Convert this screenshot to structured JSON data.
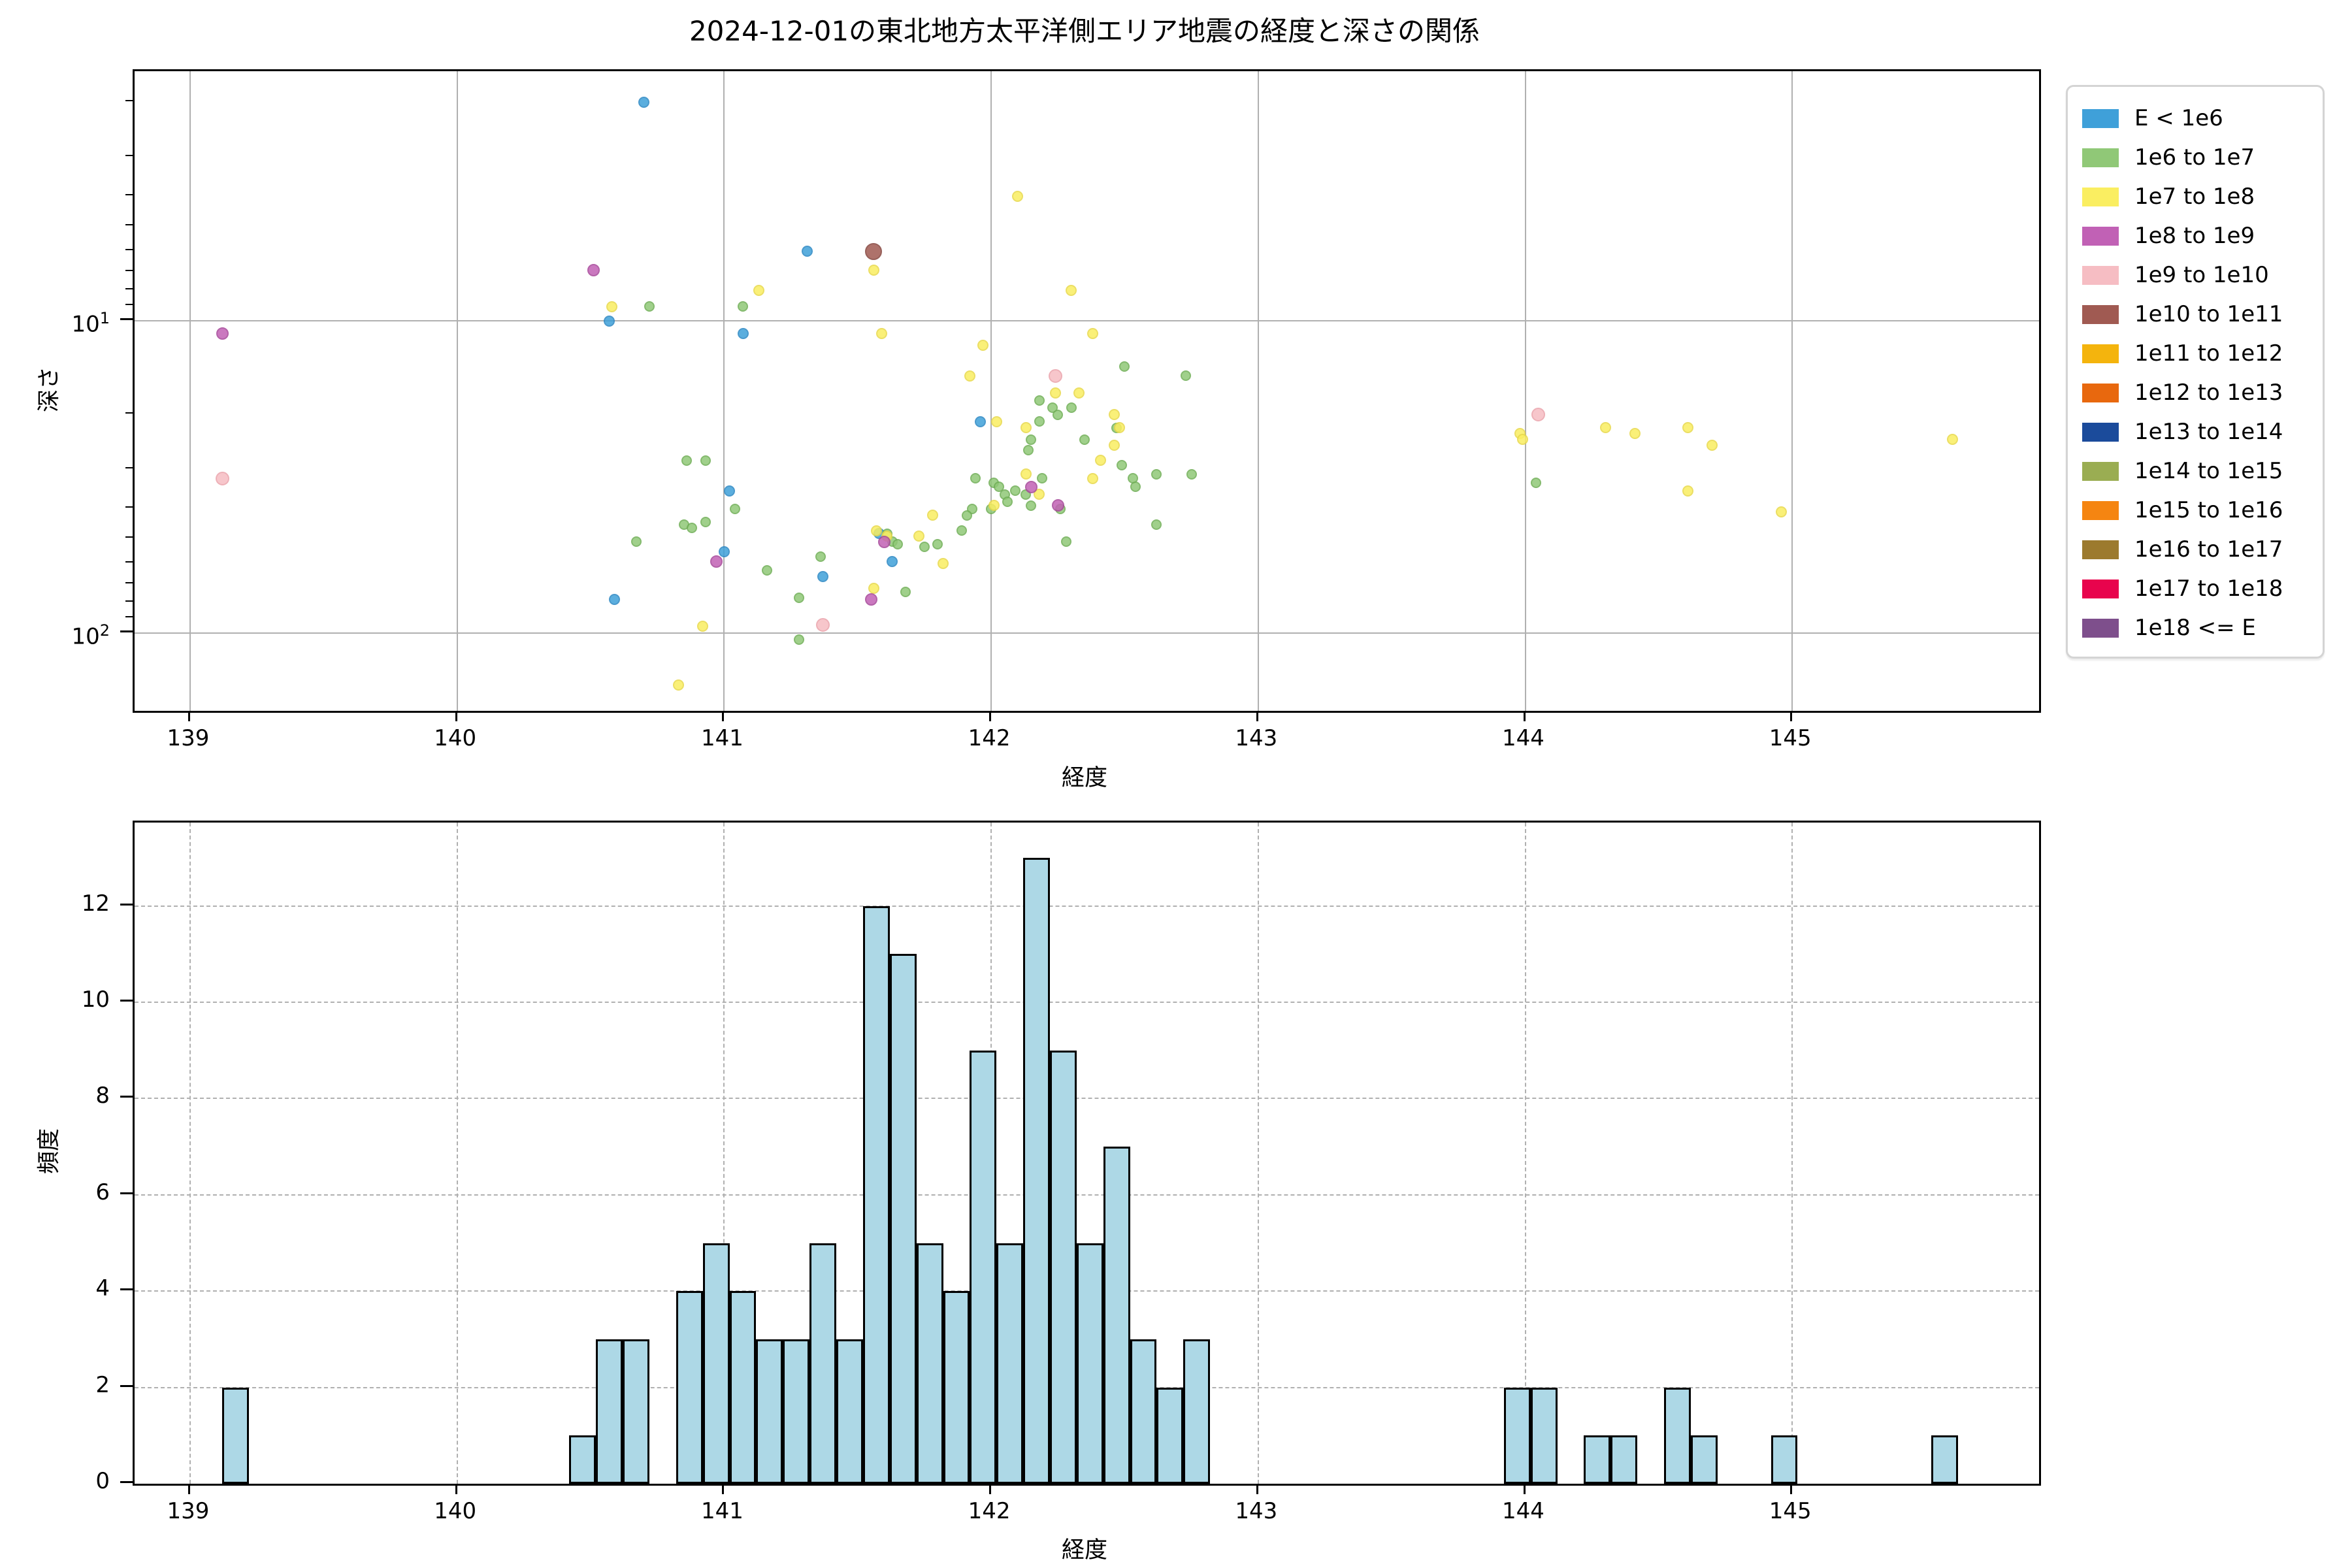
{
  "chart_data": [
    {
      "type": "scatter",
      "title": "2024-12-01の東北地方太平洋側エリア地震の経度と深さの関係",
      "xlabel": "経度",
      "ylabel": "深さ",
      "xlim": [
        138.79,
        145.93
      ],
      "ylim": [
        1.59,
        177.4
      ],
      "y_axis": "log, inverted (depth increases downward)",
      "x_ticks": [
        139,
        140,
        141,
        142,
        143,
        144,
        145
      ],
      "y_tick_exponents": [
        1,
        2
      ],
      "y_tick_base": "10",
      "y_minor_ticks": [
        2,
        3,
        4,
        5,
        6,
        7,
        8,
        9,
        20,
        30,
        40,
        50,
        60,
        70,
        80,
        90
      ],
      "grid": "solid",
      "legend_position": "outside upper right",
      "series": [
        {
          "name": "E < 1e6",
          "color": "#3fa0d9",
          "edge": "#2b88c4",
          "size": 17,
          "points": [
            [
              140.7,
              2.0
            ],
            [
              141.31,
              6.0
            ],
            [
              140.57,
              10.0
            ],
            [
              141.07,
              11.0
            ],
            [
              141.96,
              21
            ],
            [
              141.02,
              35
            ],
            [
              141.58,
              48
            ],
            [
              141.0,
              55
            ],
            [
              141.63,
              59
            ],
            [
              141.37,
              66
            ],
            [
              140.59,
              78
            ]
          ]
        },
        {
          "name": "1e6 to 1e7",
          "color": "#90c877",
          "edge": "#6fae55",
          "size": 16,
          "points": [
            [
              140.72,
              9.0
            ],
            [
              141.07,
              9.0
            ],
            [
              142.5,
              14
            ],
            [
              142.73,
              15
            ],
            [
              142.18,
              18
            ],
            [
              142.23,
              19
            ],
            [
              142.3,
              19
            ],
            [
              142.25,
              20
            ],
            [
              142.18,
              21
            ],
            [
              142.47,
              22
            ],
            [
              142.15,
              24
            ],
            [
              142.35,
              24
            ],
            [
              142.14,
              26
            ],
            [
              140.86,
              28
            ],
            [
              140.93,
              28
            ],
            [
              142.49,
              29
            ],
            [
              142.62,
              31
            ],
            [
              142.75,
              31
            ],
            [
              141.94,
              32
            ],
            [
              142.19,
              32
            ],
            [
              142.53,
              32
            ],
            [
              142.01,
              33
            ],
            [
              144.04,
              33
            ],
            [
              142.03,
              34
            ],
            [
              142.54,
              34
            ],
            [
              142.09,
              35
            ],
            [
              142.05,
              36
            ],
            [
              142.13,
              36
            ],
            [
              142.06,
              38
            ],
            [
              142.15,
              39
            ],
            [
              141.93,
              40
            ],
            [
              142.0,
              40
            ],
            [
              141.04,
              40
            ],
            [
              142.26,
              40
            ],
            [
              141.91,
              42
            ],
            [
              140.93,
              44
            ],
            [
              140.85,
              45
            ],
            [
              142.62,
              45
            ],
            [
              140.88,
              46
            ],
            [
              141.89,
              47
            ],
            [
              141.61,
              48
            ],
            [
              140.67,
              51
            ],
            [
              141.63,
              51
            ],
            [
              142.28,
              51
            ],
            [
              141.65,
              52
            ],
            [
              141.8,
              52
            ],
            [
              141.75,
              53
            ],
            [
              141.36,
              57
            ],
            [
              141.16,
              63
            ],
            [
              141.68,
              74
            ],
            [
              141.28,
              77
            ],
            [
              141.28,
              105
            ]
          ]
        },
        {
          "name": "1e7 to 1e8",
          "color": "#faee61",
          "edge": "#e8d94a",
          "size": 17,
          "points": [
            [
              142.1,
              4.0
            ],
            [
              141.56,
              6.9
            ],
            [
              142.3,
              8.0
            ],
            [
              141.13,
              8.0
            ],
            [
              140.58,
              9.0
            ],
            [
              141.59,
              11.0
            ],
            [
              142.38,
              11
            ],
            [
              141.97,
              12
            ],
            [
              141.92,
              15
            ],
            [
              142.24,
              17
            ],
            [
              142.33,
              17
            ],
            [
              142.46,
              20
            ],
            [
              142.02,
              21
            ],
            [
              144.61,
              22
            ],
            [
              142.13,
              22
            ],
            [
              142.48,
              22
            ],
            [
              144.3,
              22
            ],
            [
              143.98,
              23
            ],
            [
              144.41,
              23
            ],
            [
              143.99,
              24
            ],
            [
              145.6,
              24
            ],
            [
              142.46,
              25
            ],
            [
              144.7,
              25
            ],
            [
              142.41,
              28
            ],
            [
              142.13,
              31
            ],
            [
              142.38,
              32
            ],
            [
              144.61,
              35
            ],
            [
              142.18,
              36
            ],
            [
              142.01,
              39
            ],
            [
              144.96,
              41
            ],
            [
              141.78,
              42
            ],
            [
              141.57,
              47
            ],
            [
              141.73,
              49
            ],
            [
              141.61,
              49
            ],
            [
              141.82,
              60
            ],
            [
              141.56,
              72
            ],
            [
              140.92,
              95
            ],
            [
              140.83,
              147
            ]
          ]
        },
        {
          "name": "1e8 to 1e9",
          "color": "#c161b5",
          "edge": "#a6479a",
          "size": 19,
          "points": [
            [
              139.12,
              11.0
            ],
            [
              140.51,
              6.9
            ],
            [
              142.15,
              34
            ],
            [
              142.25,
              39
            ],
            [
              141.6,
              51
            ],
            [
              140.97,
              59
            ],
            [
              141.55,
              78
            ]
          ]
        },
        {
          "name": "1e9 to 1e10",
          "color": "#f6bdc3",
          "edge": "#eba3ab",
          "size": 21,
          "points": [
            [
              139.12,
              32
            ],
            [
              142.24,
              15
            ],
            [
              144.05,
              20
            ],
            [
              141.37,
              94
            ]
          ]
        },
        {
          "name": "1e10 to 1e11",
          "color": "#a05a52",
          "edge": "#86453e",
          "size": 26,
          "points": [
            [
              141.56,
              6.0
            ]
          ]
        },
        {
          "name": "1e11 to 1e12",
          "color": "#f4b40d",
          "edge": "#d89c05",
          "size": 17,
          "points": []
        },
        {
          "name": "1e12 to 1e13",
          "color": "#e8680e",
          "edge": "#c9560a",
          "size": 17,
          "points": []
        },
        {
          "name": "1e13 to 1e14",
          "color": "#1b4b9b",
          "edge": "#143a7d",
          "size": 17,
          "points": []
        },
        {
          "name": "1e14 to 1e15",
          "color": "#9aad52",
          "edge": "#7f913e",
          "size": 17,
          "points": []
        },
        {
          "name": "1e15 to 1e16",
          "color": "#f58511",
          "edge": "#d2700c",
          "size": 17,
          "points": []
        },
        {
          "name": "1e16 to 1e17",
          "color": "#9c7a2e",
          "edge": "#806324",
          "size": 17,
          "points": []
        },
        {
          "name": "1e17 to 1e18",
          "color": "#e8044d",
          "edge": "#c00340",
          "size": 17,
          "points": []
        },
        {
          "name": "1e18 <= E",
          "color": "#7e4f8c",
          "edge": "#673f73",
          "size": 17,
          "points": []
        }
      ]
    },
    {
      "type": "bar",
      "subtype": "histogram",
      "xlabel": "経度",
      "ylabel": "頻度",
      "xlim": [
        138.79,
        145.93
      ],
      "ylim": [
        0,
        13.7
      ],
      "x_ticks": [
        139,
        140,
        141,
        142,
        143,
        144,
        145
      ],
      "y_ticks": [
        0,
        2,
        4,
        6,
        8,
        10,
        12
      ],
      "grid": "dashed",
      "bar_color": "#add8e6",
      "bar_edge_color": "#000000",
      "bin_width": 0.1,
      "bins": [
        {
          "start": 139.12,
          "count": 2
        },
        {
          "start": 140.42,
          "count": 1
        },
        {
          "start": 140.52,
          "count": 3
        },
        {
          "start": 140.62,
          "count": 3
        },
        {
          "start": 140.82,
          "count": 4
        },
        {
          "start": 140.92,
          "count": 5
        },
        {
          "start": 141.02,
          "count": 4
        },
        {
          "start": 141.12,
          "count": 3
        },
        {
          "start": 141.22,
          "count": 3
        },
        {
          "start": 141.32,
          "count": 5
        },
        {
          "start": 141.42,
          "count": 3
        },
        {
          "start": 141.52,
          "count": 12
        },
        {
          "start": 141.62,
          "count": 11
        },
        {
          "start": 141.72,
          "count": 5
        },
        {
          "start": 141.82,
          "count": 4
        },
        {
          "start": 141.92,
          "count": 9
        },
        {
          "start": 142.02,
          "count": 5
        },
        {
          "start": 142.12,
          "count": 13
        },
        {
          "start": 142.22,
          "count": 9
        },
        {
          "start": 142.32,
          "count": 5
        },
        {
          "start": 142.42,
          "count": 7
        },
        {
          "start": 142.52,
          "count": 3
        },
        {
          "start": 142.62,
          "count": 2
        },
        {
          "start": 142.72,
          "count": 3
        },
        {
          "start": 143.92,
          "count": 2
        },
        {
          "start": 144.02,
          "count": 2
        },
        {
          "start": 144.22,
          "count": 1
        },
        {
          "start": 144.32,
          "count": 1
        },
        {
          "start": 144.52,
          "count": 2
        },
        {
          "start": 144.62,
          "count": 1
        },
        {
          "start": 144.92,
          "count": 1
        },
        {
          "start": 145.52,
          "count": 1
        }
      ]
    }
  ]
}
